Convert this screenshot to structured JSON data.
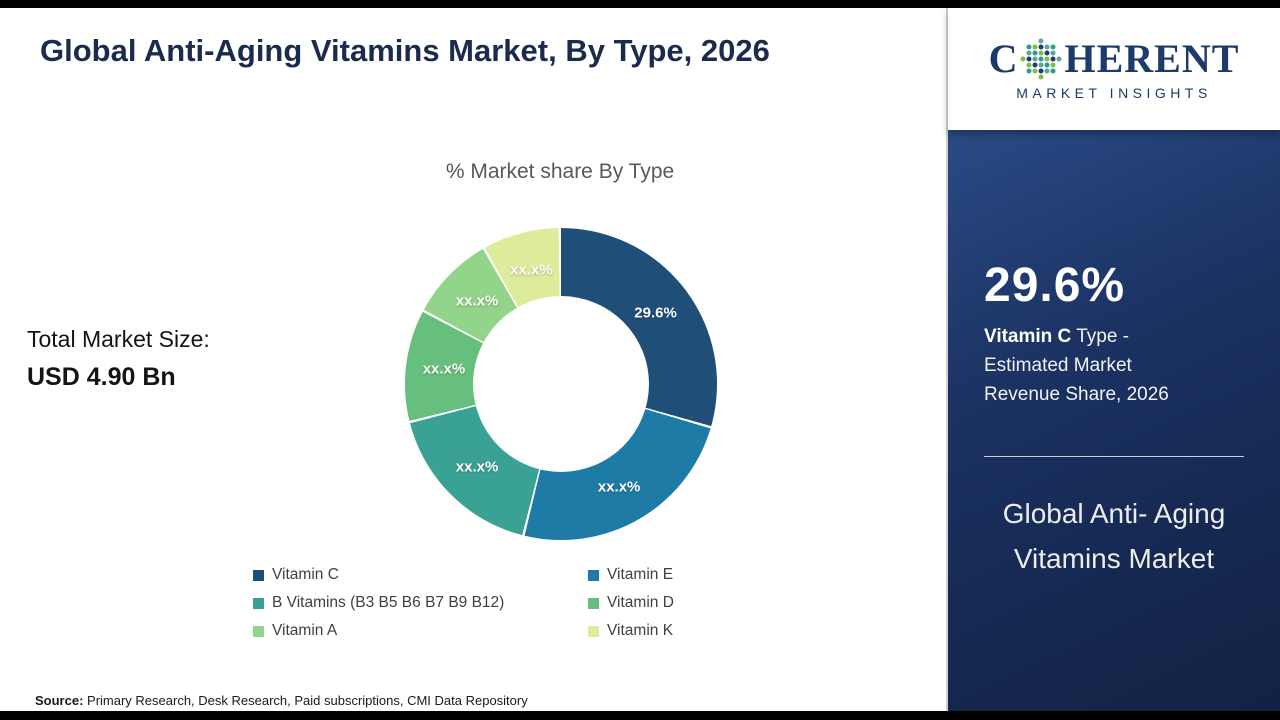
{
  "header": {
    "title": "Global Anti-Aging Vitamins Market, By Type, 2026"
  },
  "market_size": {
    "label": "Total Market Size:",
    "value": "USD 4.90 Bn"
  },
  "chart_data": {
    "type": "pie",
    "variant": "donut",
    "title": "% Market share By Type",
    "unit": "%",
    "start_angle_deg": 0,
    "legend_position": "bottom",
    "segments": [
      {
        "label": "Vitamin C",
        "value": 29.6,
        "display": "29.6%",
        "color": "#1F4E79"
      },
      {
        "label": "Vitamin E",
        "value": 24.4,
        "display": "xx.x%",
        "color": "#1E7BA6"
      },
      {
        "label": "B Vitamins (B3 B5 B6 B7 B9 B12)",
        "value": 17.2,
        "display": "xx.x%",
        "color": "#3AA295"
      },
      {
        "label": "Vitamin D",
        "value": 11.7,
        "display": "xx.x%",
        "color": "#67BF7D"
      },
      {
        "label": "Vitamin A",
        "value": 9.0,
        "display": "xx.x%",
        "color": "#92D489"
      },
      {
        "label": "Vitamin K",
        "value": 8.1,
        "display": "xx.x%",
        "color": "#DCEC9B"
      }
    ]
  },
  "source": {
    "label": "Source:",
    "text": " Primary Research, Desk Research, Paid subscriptions, CMI Data Repository"
  },
  "sidebar": {
    "logo": {
      "text_pre": "C",
      "text_post": "HERENT",
      "subtitle": "MARKET INSIGHTS",
      "dot_colors": [
        "#2d9c8e",
        "#79bf43",
        "#1e3e6e",
        "#57a6a0"
      ]
    },
    "highlight_value": "29.6%",
    "highlight_bold": "Vitamin C",
    "highlight_rest": " Type - Estimated Market Revenue Share, 2026",
    "panel_title": "Global Anti- Aging Vitamins Market"
  },
  "colors": {
    "title_navy": "#1b2b4e",
    "panel_navy": "#152850",
    "chart_title_gray": "#595959"
  }
}
